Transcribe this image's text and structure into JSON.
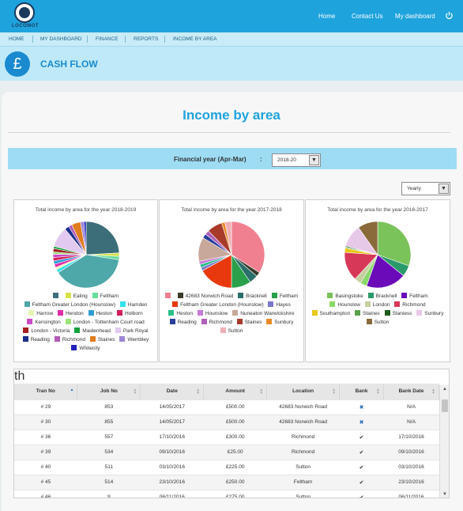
{
  "brand": {
    "logo_text": "LOCOMOT"
  },
  "topnav": {
    "home": "Home",
    "contact": "Contact Us",
    "dashboard": "My dashboard"
  },
  "subnav": [
    "HOME",
    "MY DASHBOARD",
    "FINANCE",
    "REPORTS",
    "INCOME BY AREA"
  ],
  "cashflow": {
    "icon_glyph": "£",
    "title": "CASH FLOW"
  },
  "page": {
    "title": "Income by area"
  },
  "filter": {
    "label": "Financial year (Apr-Mar)",
    "colon": ":",
    "year_value": "2018-20",
    "period_value": "Yearly"
  },
  "chart_data": [
    {
      "type": "pie",
      "title": "Total income by area for the year 2018-2019",
      "labels": [
        "",
        "Ealing",
        "Feltham",
        "Feltham Greater London (Hounslow)",
        "Hamden",
        "Harrow",
        "Hendon",
        "Heston",
        "Holborn",
        "Kensington",
        "London - Tottenham Court road",
        "London - Victoria",
        "Maidenhead",
        "Park Royal",
        "Reading",
        "Richmond",
        "Staines",
        "Wembley",
        "Whitecity"
      ],
      "colors": [
        "#3c6e7a",
        "#d6e24a",
        "#66dd99",
        "#4ea7a8",
        "#33e0e8",
        "#e6f6b0",
        "#e02caa",
        "#2e9bd6",
        "#d21f5a",
        "#cc49c6",
        "#9be37a",
        "#a32020",
        "#12a03c",
        "#e1c9ef",
        "#1c2e8c",
        "#b25ab5",
        "#e07d1c",
        "#9e86d8",
        "#2222bb"
      ],
      "values": [
        22,
        1.5,
        1.5,
        35,
        1.5,
        1,
        1.5,
        1.5,
        1.5,
        1.5,
        1,
        1.5,
        1,
        9,
        2,
        1.5,
        4,
        1.5,
        1
      ]
    },
    {
      "type": "pie",
      "title": "Total income by area for the year 2017-2018",
      "labels": [
        "",
        "42683 Norwich Road",
        "Bracknell",
        "Feltham",
        "Feltham Greater London (Hounslow)",
        "Hayes",
        "Heston",
        "Hounslow",
        "Nuneaton Warwickshire",
        "Reading",
        "Richmond",
        "Staines",
        "Sunbury",
        "Sutton"
      ],
      "colors": [
        "#f08090",
        "#3a3a2a",
        "#2a6e6a",
        "#2aa04a",
        "#e8380d",
        "#7a78c8",
        "#2abf8a",
        "#c67ad8",
        "#c8a89a",
        "#2a3e9a",
        "#b060b8",
        "#a83a2a",
        "#e88a28",
        "#f0b0b8"
      ],
      "values": [
        32,
        2,
        4,
        9,
        16,
        1.5,
        1.5,
        1.5,
        11,
        2,
        2,
        7,
        1.5,
        3
      ]
    },
    {
      "type": "pie",
      "title": "Total income by area for the year 2016-2017",
      "labels": [
        "Basingstoke",
        "Bracknell",
        "Feltham",
        "Hounslow",
        "London",
        "Richmond",
        "Southampton",
        "Staines",
        "Staniess",
        "Sunbury",
        "Sutton"
      ],
      "colors": [
        "#7ac25a",
        "#2a9a6a",
        "#6a0ab8",
        "#8ad86a",
        "#c4d0a0",
        "#d83858",
        "#e8c818",
        "#5aa04a",
        "#1e5a1e",
        "#e8c8e8",
        "#8a6a3a"
      ],
      "values": [
        28,
        5,
        18,
        3,
        3,
        13,
        2,
        0.5,
        0.5,
        10,
        9
      ]
    }
  ],
  "table": {
    "columns": [
      "Tran No",
      "Job No",
      "Date",
      "Amount",
      "Location",
      "Bank",
      "Bank Date"
    ],
    "rows": [
      [
        "# 29",
        "853",
        "14/05/2017",
        "£500.00",
        "42683 Norwich Road",
        "x",
        "N/A"
      ],
      [
        "# 30",
        "855",
        "14/05/2017",
        "£500.00",
        "42683 Norwich Road",
        "x",
        "N/A"
      ],
      [
        "# 36",
        "557",
        "17/10/2016",
        "£300.00",
        "Richmond",
        "ok",
        "17/10/2016"
      ],
      [
        "# 39",
        "534",
        "09/10/2016",
        "£25.00",
        "Richmond",
        "ok",
        "09/10/2016"
      ],
      [
        "# 40",
        "511",
        "03/10/2016",
        "£225.00",
        "Sutton",
        "ok",
        "03/10/2016"
      ],
      [
        "# 45",
        "514",
        "23/10/2016",
        "£250.00",
        "Feltham",
        "ok",
        "23/10/2016"
      ],
      [
        "# 46",
        "9",
        "06/11/2016",
        "£275.00",
        "Sutton",
        "ok",
        "06/11/2016"
      ]
    ]
  }
}
